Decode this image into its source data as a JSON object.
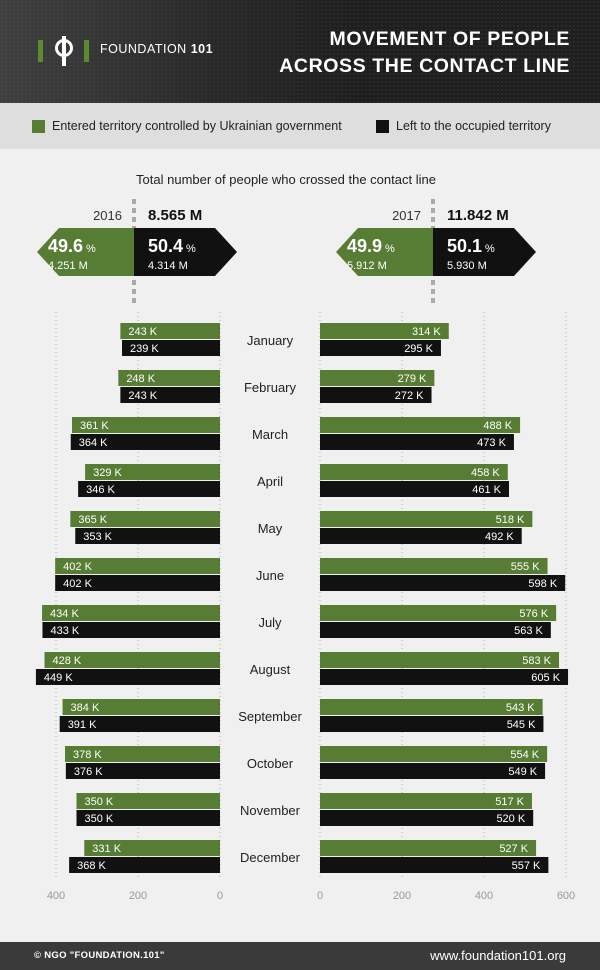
{
  "header": {
    "logo_text": "FOUNDATION",
    "logo_number": "101",
    "title_line1": "MOVEMENT OF PEOPLE",
    "title_line2": "ACROSS THE CONTACT LINE"
  },
  "legend": {
    "entered_label": "Entered territory controlled by Ukrainian government",
    "left_label": "Left to the occupied territory"
  },
  "colors": {
    "entered": "#577c33",
    "left": "#111111"
  },
  "footer": {
    "copyright": "© NGO \"FOUNDATION.101\"",
    "website": "www.foundation101.org"
  },
  "chart_data": {
    "type": "bar",
    "title": "Total number of people who crossed the contact line",
    "unit": "K",
    "years": [
      {
        "year": "2016",
        "total": "8.565 M",
        "entered_pct": "49.6",
        "entered_abs": "4.251 M",
        "left_pct": "50.4",
        "left_abs": "4.314 M"
      },
      {
        "year": "2017",
        "total": "11.842 M",
        "entered_pct": "49.9",
        "entered_abs": "5.912 M",
        "left_pct": "50.1",
        "left_abs": "5.930 M"
      }
    ],
    "categories": [
      "January",
      "February",
      "March",
      "April",
      "May",
      "June",
      "July",
      "August",
      "September",
      "October",
      "November",
      "December"
    ],
    "series": [
      {
        "name": "Entered territory controlled by Ukrainian government",
        "year": "2016",
        "values": [
          243,
          248,
          361,
          329,
          365,
          402,
          434,
          428,
          384,
          378,
          350,
          331
        ]
      },
      {
        "name": "Left to the occupied territory",
        "year": "2016",
        "values": [
          239,
          243,
          364,
          346,
          353,
          402,
          433,
          449,
          391,
          376,
          350,
          368
        ]
      },
      {
        "name": "Entered territory controlled by Ukrainian government",
        "year": "2017",
        "values": [
          314,
          279,
          488,
          458,
          518,
          555,
          576,
          583,
          543,
          554,
          517,
          527
        ]
      },
      {
        "name": "Left to the occupied territory",
        "year": "2017",
        "values": [
          295,
          272,
          473,
          461,
          492,
          598,
          563,
          605,
          545,
          549,
          520,
          557
        ]
      }
    ],
    "xlim_2016": [
      400,
      0
    ],
    "xlim_2017": [
      0,
      600
    ],
    "xticks_2016": [
      400,
      200,
      0
    ],
    "xticks_2017": [
      0,
      200,
      400,
      600
    ],
    "grid": true
  }
}
